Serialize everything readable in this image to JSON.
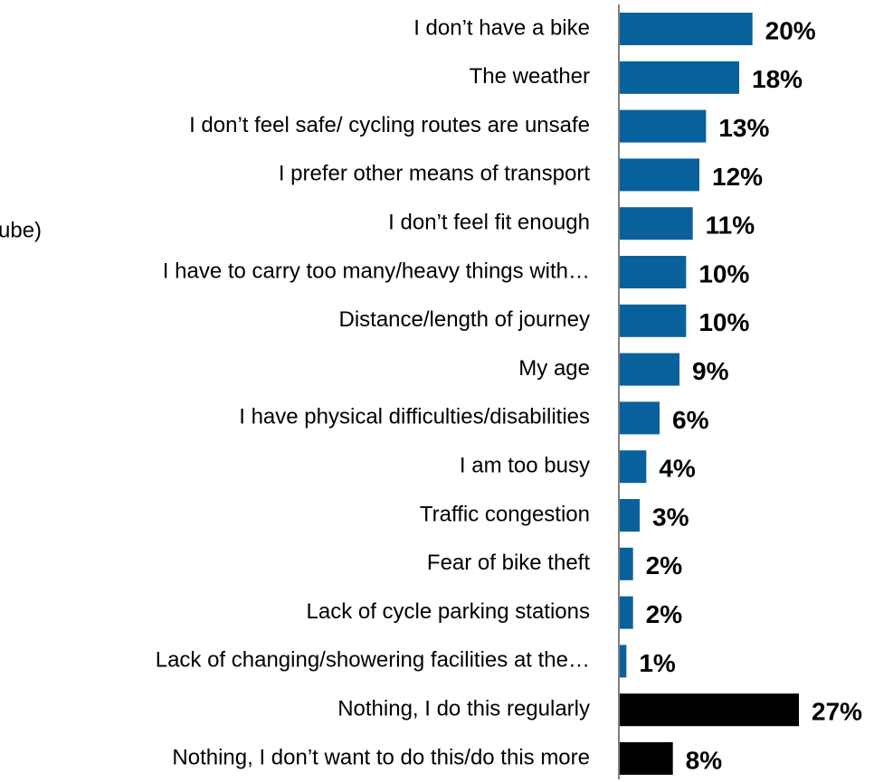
{
  "chart_data": {
    "type": "barh",
    "annotation": "ube)",
    "categories": [
      "I don’t have a bike",
      "The weather",
      "I don’t feel safe/ cycling routes are unsafe",
      "I prefer other means of transport",
      "I don’t feel fit enough",
      "I have to carry too many/heavy things with…",
      "Distance/length of journey",
      "My age",
      "I have physical difficulties/disabilities",
      "I am too busy",
      "Traffic congestion",
      "Fear of bike theft",
      "Lack of cycle parking stations",
      "Lack of changing/showering facilities at the…",
      "Nothing, I do this regularly",
      "Nothing, I don’t want to do this/do this more"
    ],
    "values": [
      20,
      18,
      13,
      12,
      11,
      10,
      10,
      9,
      6,
      4,
      3,
      2,
      2,
      1,
      27,
      8
    ],
    "value_labels": [
      "20%",
      "18%",
      "13%",
      "12%",
      "11%",
      "10%",
      "10%",
      "9%",
      "6%",
      "4%",
      "3%",
      "2%",
      "2%",
      "1%",
      "27%",
      "8%"
    ],
    "colors": [
      "#08619b",
      "#08619b",
      "#08619b",
      "#08619b",
      "#08619b",
      "#08619b",
      "#08619b",
      "#08619b",
      "#08619b",
      "#08619b",
      "#08619b",
      "#08619b",
      "#08619b",
      "#08619b",
      "#000000",
      "#000000"
    ],
    "xlim": [
      0,
      30
    ]
  }
}
